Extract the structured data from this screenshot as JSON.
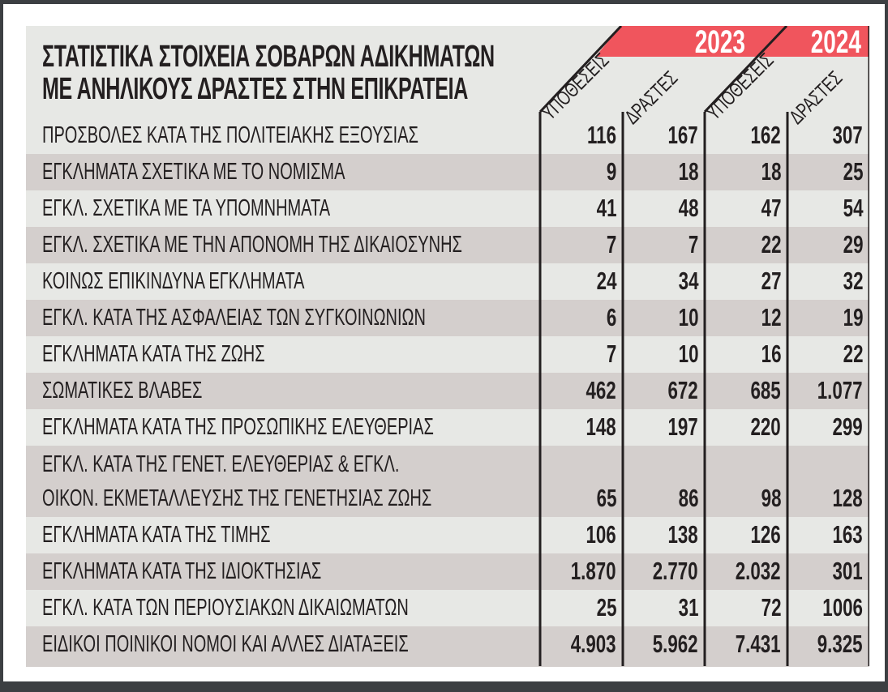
{
  "title": [
    "ΣΤΑΤΙΣΤΙΚΑ ΣΤΟΙΧΕΙΑ ΣΟΒΑΡΩΝ ΑΔΙΚΗΜΑΤΩΝ",
    "ΜΕ ΑΝΗΛΙΚΟΥΣ ΔΡΑΣΤΕΣ ΣΤΗΝ ΕΠΙΚΡΑΤΕΙΑ"
  ],
  "colors": {
    "header_band": "#f0555d",
    "row_light": "#e7e8e5",
    "row_striped": "#d4cfcd",
    "text": "#231f20"
  },
  "chart_data": {
    "type": "table",
    "years": [
      "2023",
      "2024"
    ],
    "column_headers": [
      "ΥΠΟΘΕΣΕΙΣ",
      "ΔΡΑΣΤΕΣ",
      "ΥΠΟΘΕΣΕΙΣ",
      "ΔΡΑΣΤΕΣ"
    ],
    "rows": [
      {
        "label": [
          "ΠΡΟΣΒΟΛΕΣ ΚΑΤΑ ΤΗΣ ΠΟΛΙΤΕΙΑΚΗΣ ΕΞΟΥΣΙΑΣ"
        ],
        "values": [
          "116",
          "167",
          "162",
          "307"
        ]
      },
      {
        "label": [
          "ΕΓΚΛΗΜΑΤΑ ΣΧΕΤΙΚΑ ΜΕ ΤΟ ΝΟΜΙΣΜΑ"
        ],
        "values": [
          "9",
          "18",
          "18",
          "25"
        ]
      },
      {
        "label": [
          "ΕΓΚΛ. ΣΧΕΤΙΚΑ ΜΕ ΤΑ ΥΠΟΜΝΗΜΑΤΑ"
        ],
        "values": [
          "41",
          "48",
          "47",
          "54"
        ]
      },
      {
        "label": [
          "ΕΓΚΛ. ΣΧΕΤΙΚΑ ΜΕ ΤΗΝ ΑΠΟΝΟΜΗ ΤΗΣ ΔΙΚΑΙΟΣΥΝΗΣ"
        ],
        "values": [
          "7",
          "7",
          "22",
          "29"
        ]
      },
      {
        "label": [
          "ΚΟΙΝΩΣ ΕΠΙΚΙΝΔΥΝΑ ΕΓΚΛΗΜΑΤΑ"
        ],
        "values": [
          "24",
          "34",
          "27",
          "32"
        ]
      },
      {
        "label": [
          "ΕΓΚΛ. ΚΑΤΑ ΤΗΣ ΑΣΦΑΛΕΙΑΣ ΤΩΝ ΣΥΓΚΟΙΝΩΝΙΩΝ"
        ],
        "values": [
          "6",
          "10",
          "12",
          "19"
        ]
      },
      {
        "label": [
          "ΕΓΚΛΗΜΑΤΑ ΚΑΤΑ ΤΗΣ ΖΩΗΣ"
        ],
        "values": [
          "7",
          "10",
          "16",
          "22"
        ]
      },
      {
        "label": [
          "ΣΩΜΑΤΙΚΕΣ ΒΛΑΒΕΣ"
        ],
        "values": [
          "462",
          "672",
          "685",
          "1.077"
        ]
      },
      {
        "label": [
          "ΕΓΚΛΗΜΑΤΑ ΚΑΤΑ ΤΗΣ ΠΡΟΣΩΠΙΚΗΣ ΕΛΕΥΘΕΡΙΑΣ"
        ],
        "values": [
          "148",
          "197",
          "220",
          "299"
        ]
      },
      {
        "label": [
          "ΕΓΚΛ. ΚΑΤΑ ΤΗΣ ΓΕΝΕΤ. ΕΛΕΥΘΕΡΙΑΣ & ΕΓΚΛ.",
          "ΟΙΚΟΝ. ΕΚΜΕΤΑΛΛΕΥΣΗΣ ΤΗΣ ΓΕΝΕΤΗΣΙΑΣ ΖΩΗΣ"
        ],
        "values": [
          "65",
          "86",
          "98",
          "128"
        ]
      },
      {
        "label": [
          "ΕΓΚΛΗΜΑΤΑ ΚΑΤΑ ΤΗΣ ΤΙΜΗΣ"
        ],
        "values": [
          "106",
          "138",
          "126",
          "163"
        ]
      },
      {
        "label": [
          "ΕΓΚΛΗΜΑΤΑ ΚΑΤΑ ΤΗΣ ΙΔΙΟΚΤΗΣΙΑΣ"
        ],
        "values": [
          "1.870",
          "2.770",
          "2.032",
          "301"
        ]
      },
      {
        "label": [
          "ΕΓΚΛ. ΚΑΤΑ ΤΩΝ ΠΕΡΙΟΥΣΙΑΚΩΝ ΔΙΚΑΙΩΜΑΤΩΝ"
        ],
        "values": [
          "25",
          "31",
          "72",
          "1006"
        ]
      },
      {
        "label": [
          "ΕΙΔΙΚΟΙ ΠΟΙΝΙΚΟΙ ΝΟΜΟΙ ΚΑΙ ΑΛΛΕΣ ΔΙΑΤΑΞΕΙΣ"
        ],
        "values": [
          "4.903",
          "5.962",
          "7.431",
          "9.325"
        ]
      }
    ]
  }
}
